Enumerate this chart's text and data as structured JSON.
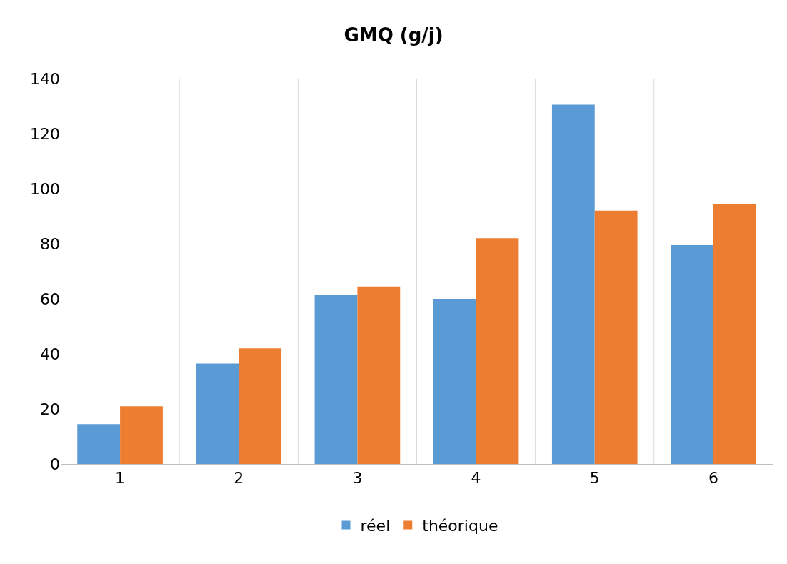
{
  "chart_data": {
    "type": "bar",
    "title": "GMQ (g/j)",
    "categories": [
      "1",
      "2",
      "3",
      "4",
      "5",
      "6"
    ],
    "series": [
      {
        "name": "réel",
        "color": "#5b9bd5",
        "values": [
          14.5,
          36.5,
          61.5,
          60,
          130.5,
          79.5
        ]
      },
      {
        "name": "théorique",
        "color": "#ed7d31",
        "values": [
          21,
          42,
          64.5,
          82,
          92,
          94.5
        ]
      }
    ],
    "ylim": [
      0,
      140
    ],
    "yticks": [
      0,
      20,
      40,
      60,
      80,
      100,
      120,
      140
    ],
    "grid": "x",
    "legend": "bottom"
  }
}
